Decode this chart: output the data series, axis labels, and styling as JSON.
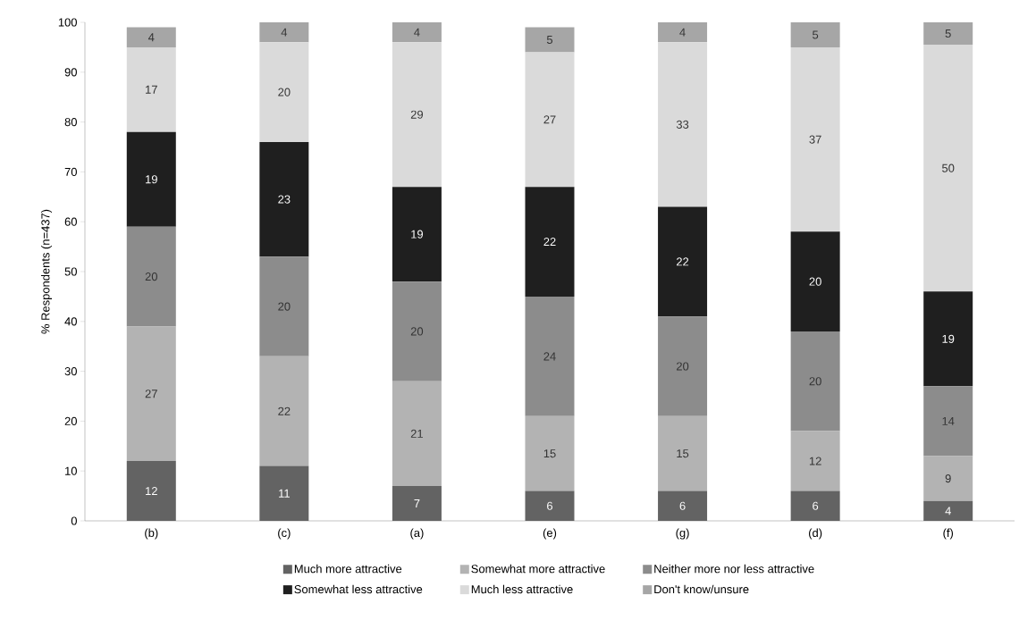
{
  "chart_data": {
    "type": "bar",
    "stacked": true,
    "ylabel": "% Respondents (n=437)",
    "categories": [
      "(b)",
      "(c)",
      "(a)",
      "(e)",
      "(g)",
      "(d)",
      "(f)"
    ],
    "series": [
      {
        "name": "Much more attractive",
        "color": "#636363",
        "values": [
          12,
          11,
          7,
          6,
          6,
          6,
          4
        ],
        "value_labels": [
          "12",
          "11",
          "7",
          "6",
          "6",
          "6",
          "4"
        ]
      },
      {
        "name": "Somewhat more attractive",
        "color": "#b3b3b3",
        "values": [
          27,
          22,
          21,
          15,
          15,
          12,
          9
        ],
        "value_labels": [
          "27",
          "22",
          "21",
          "15",
          "15",
          "12",
          "9"
        ]
      },
      {
        "name": "Neither more nor less attractive",
        "color": "#8c8c8c",
        "values": [
          20,
          20,
          20,
          24,
          20,
          20,
          14
        ],
        "value_labels": [
          "20",
          "20",
          "20",
          "24",
          "20",
          "20",
          "14"
        ]
      },
      {
        "name": "Somewhat less attractive",
        "color": "#1f1f1f",
        "values": [
          19,
          23,
          19,
          22,
          22,
          20,
          19
        ],
        "value_labels": [
          "19",
          "23",
          "19",
          "22",
          "22",
          "20",
          "19"
        ]
      },
      {
        "name": "Much less attractive",
        "color": "#dadada",
        "values": [
          17,
          20,
          29,
          27,
          33,
          37,
          49.5
        ],
        "value_labels": [
          "17",
          "20",
          "29",
          "27",
          "33",
          "37",
          "50"
        ]
      },
      {
        "name": "Don't know/unsure",
        "color": "#a6a6a6",
        "values": [
          4,
          4,
          4,
          5,
          4,
          5,
          4.5
        ],
        "value_labels": [
          "4",
          "4",
          "4",
          "5",
          "4",
          "5",
          "5"
        ]
      }
    ],
    "ylim": [
      0,
      100
    ],
    "yticks": [
      0,
      10,
      20,
      30,
      40,
      50,
      60,
      70,
      80,
      90,
      100
    ],
    "legend": "bottom",
    "grid": false
  }
}
